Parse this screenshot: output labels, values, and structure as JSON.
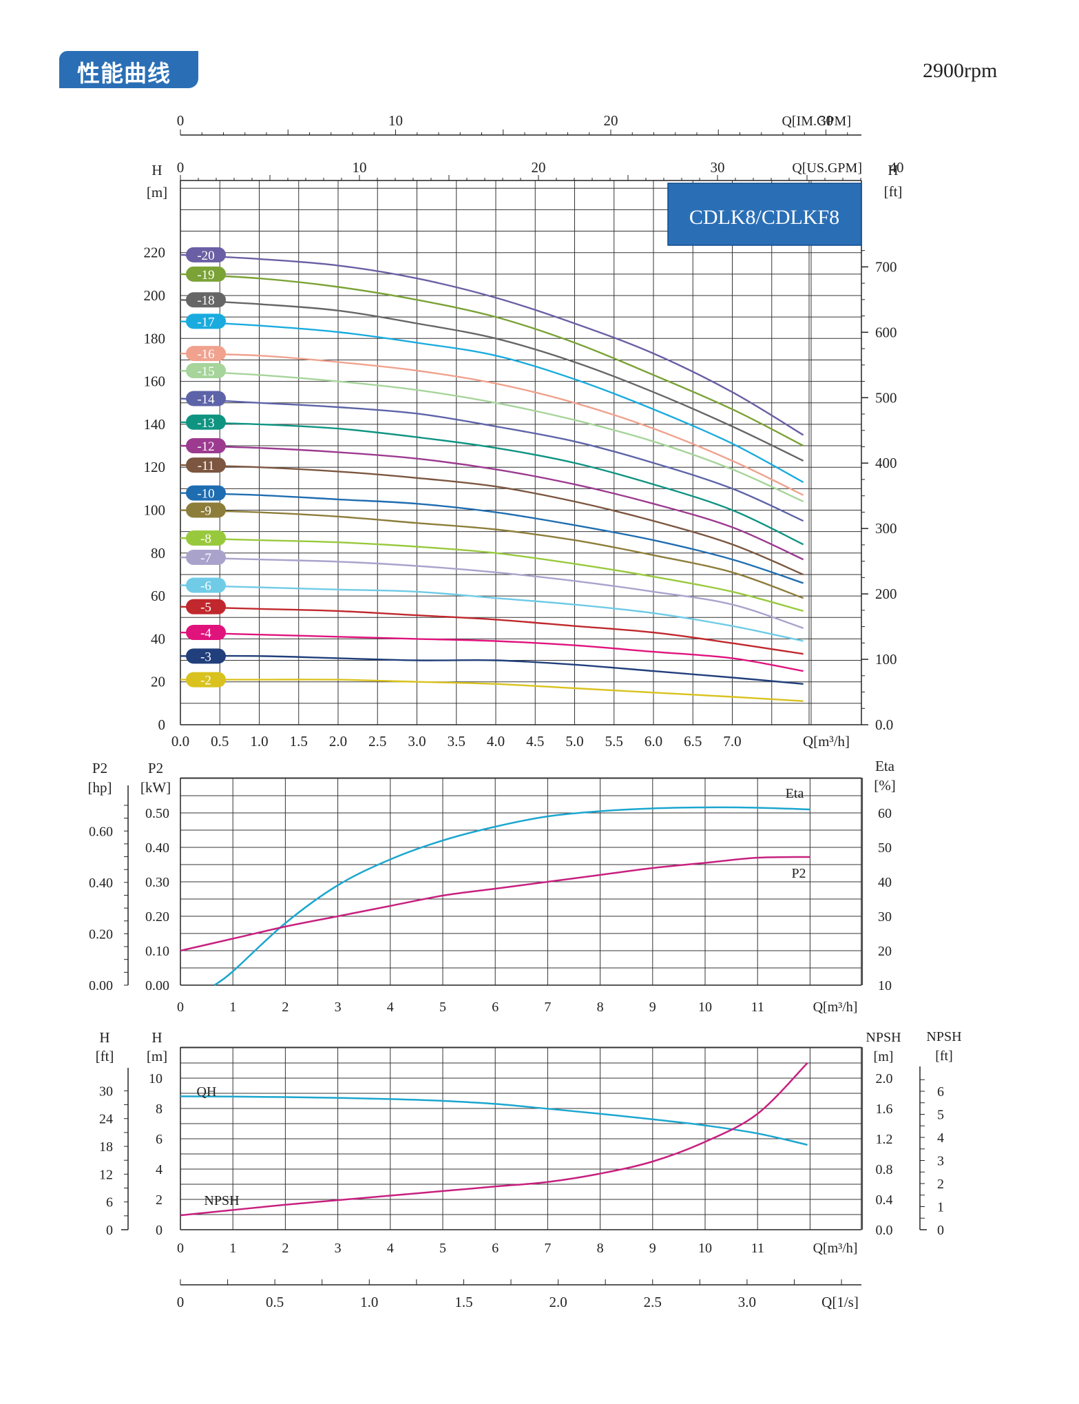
{
  "header": {
    "title": "性能曲线",
    "rpm": "2900rpm",
    "model": "CDLK8/CDLKF8"
  },
  "colors": {
    "accent": "#2a6fb6",
    "eta": "#1ba6cf",
    "p2": "#c7207f",
    "npsh": "#c7207f",
    "qh": "#1ba6cf"
  },
  "chart_data": [
    {
      "type": "line",
      "name": "head-curves",
      "title": "",
      "xlabel": "Q[m³/h]",
      "ylabel": "H [m]",
      "y2label": "H [ft]",
      "x_ticks": [
        "0.0",
        "0.5",
        "1.0",
        "1.5",
        "2.0",
        "2.5",
        "3.0",
        "3.5",
        "4.0",
        "4.5",
        "5.0",
        "5.5",
        "6.0",
        "6.5",
        "7.0"
      ],
      "y_ticks": [
        "0",
        "20",
        "40",
        "60",
        "80",
        "100",
        "120",
        "140",
        "160",
        "180",
        "200",
        "220"
      ],
      "y2_ticks": [
        "0.0",
        "100",
        "200",
        "300",
        "400",
        "500",
        "600",
        "700"
      ],
      "top_axis_us": {
        "label": "Q[US.GPM]",
        "ticks": [
          "0",
          "10",
          "20",
          "30",
          "40"
        ]
      },
      "top_axis_im": {
        "label": "Q[IM.GPM]",
        "ticks": [
          "0",
          "10",
          "20",
          "30"
        ]
      },
      "xlim": [
        0,
        8.5
      ],
      "ylim": [
        0,
        250
      ],
      "x": [
        0,
        1,
        2,
        3,
        4,
        5,
        6,
        7,
        7.9
      ],
      "series": [
        {
          "name": "-20",
          "color": "#6a5fa4",
          "values": [
            219,
            217,
            214,
            208,
            199,
            187,
            173,
            155,
            135
          ]
        },
        {
          "name": "-19",
          "color": "#7ba236",
          "values": [
            210,
            208,
            204,
            198,
            190,
            178,
            163,
            147,
            130
          ]
        },
        {
          "name": "-18",
          "color": "#666666",
          "values": [
            198,
            196,
            193,
            187,
            180,
            169,
            155,
            139,
            123
          ]
        },
        {
          "name": "-17",
          "color": "#1aabde",
          "values": [
            188,
            186,
            183,
            178,
            172,
            161,
            147,
            131,
            113
          ]
        },
        {
          "name": "-16",
          "color": "#f0a28e",
          "values": [
            173,
            172,
            169,
            165,
            159,
            150,
            138,
            123,
            107
          ]
        },
        {
          "name": "-15",
          "color": "#a6d49a",
          "values": [
            165,
            163,
            160,
            156,
            150,
            142,
            132,
            119,
            104
          ]
        },
        {
          "name": "-14",
          "color": "#5d63a8",
          "values": [
            152,
            150,
            148,
            145,
            139,
            132,
            122,
            110,
            95
          ]
        },
        {
          "name": "-13",
          "color": "#0f9482",
          "values": [
            141,
            140,
            138,
            134,
            129,
            122,
            112,
            100,
            84
          ]
        },
        {
          "name": "-12",
          "color": "#9c3a8f",
          "values": [
            130,
            129,
            127,
            124,
            119,
            112,
            103,
            92,
            77
          ]
        },
        {
          "name": "-11",
          "color": "#7c5640",
          "values": [
            121,
            120,
            118,
            115,
            111,
            104,
            95,
            84,
            70
          ]
        },
        {
          "name": "-10",
          "color": "#1f6db1",
          "values": [
            108,
            107,
            105,
            103,
            99,
            93,
            86,
            77,
            66
          ]
        },
        {
          "name": "-9",
          "color": "#8d7d3a",
          "values": [
            100,
            99,
            97,
            94,
            91,
            86,
            79,
            71,
            59
          ]
        },
        {
          "name": "-8",
          "color": "#98c93c",
          "values": [
            87,
            86,
            85,
            83,
            80,
            75,
            69,
            62,
            53
          ]
        },
        {
          "name": "-7",
          "color": "#a9a3cc",
          "values": [
            78,
            77,
            76,
            74,
            71,
            67,
            62,
            56,
            45
          ]
        },
        {
          "name": "-6",
          "color": "#6fcbe6",
          "values": [
            65,
            64,
            63,
            62,
            59,
            56,
            52,
            46,
            39
          ]
        },
        {
          "name": "-5",
          "color": "#c0282d",
          "values": [
            55,
            54,
            53,
            51,
            49,
            46,
            43,
            38,
            33
          ]
        },
        {
          "name": "-4",
          "color": "#e0137d",
          "values": [
            43,
            42,
            41,
            40,
            39,
            37,
            34,
            31,
            25
          ]
        },
        {
          "name": "-3",
          "color": "#213f7b",
          "values": [
            32,
            32,
            31,
            30,
            30,
            28,
            25,
            22,
            19
          ]
        },
        {
          "name": "-2",
          "color": "#d9c21e",
          "values": [
            21,
            21,
            21,
            20,
            19,
            17,
            15,
            13,
            11
          ]
        }
      ]
    },
    {
      "type": "line",
      "name": "power-efficiency",
      "xlabel": "Q[m³/h]",
      "p2_kw_label": "P2 [kW]",
      "p2_hp_label": "P2 [hp]",
      "eta_label": "Eta [%]",
      "x_ticks": [
        "0",
        "1",
        "2",
        "3",
        "4",
        "5",
        "6",
        "7",
        "8",
        "9",
        "10",
        "11"
      ],
      "kw_ticks": [
        "0.00",
        "0.10",
        "0.20",
        "0.30",
        "0.40",
        "0.50"
      ],
      "hp_ticks": [
        "0.00",
        "0.20",
        "0.40",
        "0.60"
      ],
      "eta_ticks": [
        "10",
        "20",
        "30",
        "40",
        "50",
        "60"
      ],
      "xlim": [
        0,
        13
      ],
      "series": [
        {
          "name": "Eta",
          "x": [
            0.65,
            1,
            2,
            3,
            4,
            5,
            6,
            7,
            8,
            9,
            10,
            11,
            12
          ],
          "values": [
            10,
            14,
            28,
            39,
            46.5,
            52,
            56,
            59,
            60.5,
            61.3,
            61.6,
            61.5,
            61
          ]
        },
        {
          "name": "P2",
          "x": [
            0,
            1,
            2,
            3,
            4,
            5,
            6,
            7,
            8,
            9,
            10,
            11,
            12
          ],
          "values": [
            0.1,
            0.135,
            0.17,
            0.2,
            0.23,
            0.26,
            0.28,
            0.3,
            0.32,
            0.34,
            0.355,
            0.37,
            0.372
          ]
        }
      ]
    },
    {
      "type": "line",
      "name": "single-stage-npsh",
      "xlabel": "Q[m³/h]",
      "h_m_label": "H [m]",
      "h_ft_label": "H [ft]",
      "npsh_m_label": "NPSH [m]",
      "npsh_ft_label": "NPSH [ft]",
      "bottom_axis": {
        "label": "Q[1/s]",
        "ticks": [
          "0",
          "0.5",
          "1.0",
          "1.5",
          "2.0",
          "2.5",
          "3.0"
        ]
      },
      "x_ticks": [
        "0",
        "1",
        "2",
        "3",
        "4",
        "5",
        "6",
        "7",
        "8",
        "9",
        "10",
        "11"
      ],
      "h_m_ticks": [
        "0",
        "2",
        "4",
        "6",
        "8",
        "10"
      ],
      "h_ft_ticks": [
        "0",
        "6",
        "12",
        "18",
        "24",
        "30"
      ],
      "npsh_m_ticks": [
        "0.0",
        "0.4",
        "0.8",
        "1.2",
        "1.6",
        "2.0"
      ],
      "npsh_ft_ticks": [
        "0",
        "1",
        "2",
        "3",
        "4",
        "5",
        "6"
      ],
      "xlim": [
        0,
        13
      ],
      "series": [
        {
          "name": "QH",
          "x": [
            0,
            1,
            2,
            3,
            4,
            5,
            6,
            7,
            8,
            9,
            10,
            11,
            11.95
          ],
          "values": [
            8.8,
            8.78,
            8.75,
            8.7,
            8.62,
            8.5,
            8.3,
            7.98,
            7.65,
            7.28,
            6.88,
            6.35,
            5.6
          ]
        },
        {
          "name": "NPSH",
          "x": [
            0,
            1,
            2,
            3,
            4,
            5,
            6,
            7,
            8,
            9,
            10,
            11,
            11.95
          ],
          "values": [
            0.19,
            0.26,
            0.33,
            0.39,
            0.45,
            0.51,
            0.57,
            0.63,
            0.74,
            0.9,
            1.16,
            1.53,
            2.2
          ]
        }
      ]
    }
  ]
}
